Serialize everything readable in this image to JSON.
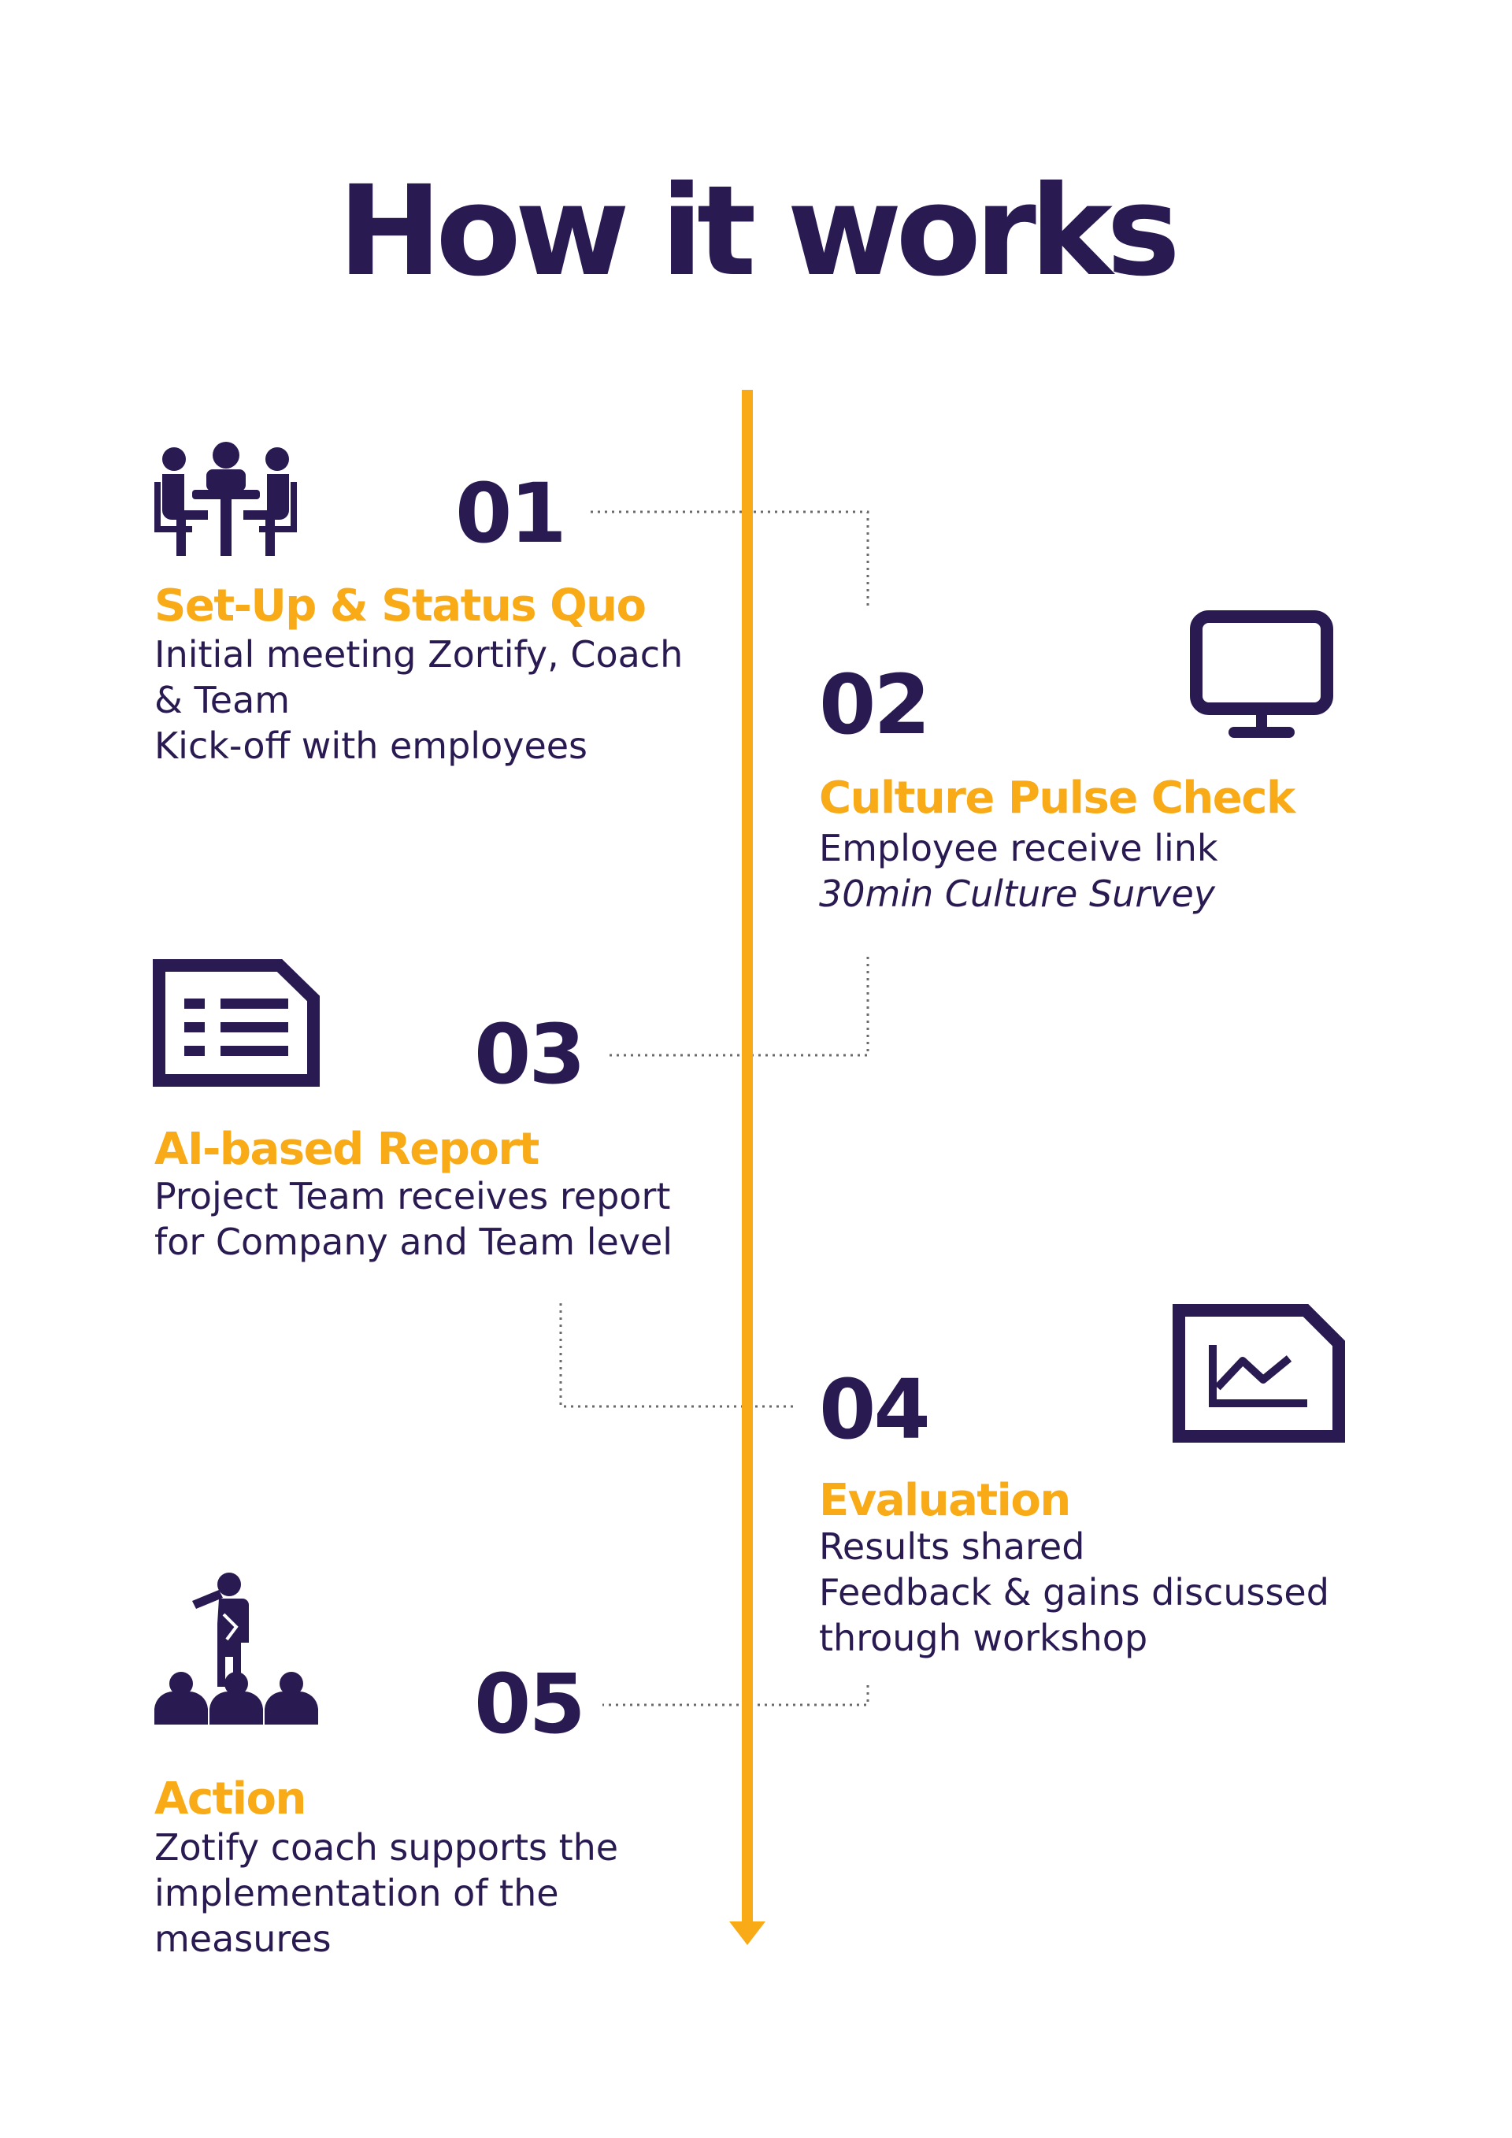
{
  "title": "How it works",
  "colors": {
    "primary": "#2a1a52",
    "accent": "#f8ab17",
    "connector": "#6b6b6b"
  },
  "steps": [
    {
      "number": "01",
      "heading": "Set-Up & Status Quo",
      "icon": "meeting-icon",
      "lines": [
        "Initial meeting Zortify, Coach",
        "& Team",
        "Kick-off with employees"
      ]
    },
    {
      "number": "02",
      "heading": "Culture Pulse Check",
      "icon": "monitor-icon",
      "lines": [
        "Employee receive link"
      ],
      "italic_line": "30min Culture Survey"
    },
    {
      "number": "03",
      "heading": "AI-based Report",
      "icon": "report-icon",
      "lines": [
        "Project Team receives report",
        "for Company and Team level"
      ]
    },
    {
      "number": "04",
      "heading": "Evaluation",
      "icon": "chart-icon",
      "lines": [
        "Results shared",
        "Feedback & gains discussed",
        "through workshop"
      ]
    },
    {
      "number": "05",
      "heading": "Action",
      "icon": "presentation-icon",
      "lines": [
        "Zotify coach supports the",
        "implementation of the",
        "measures"
      ]
    }
  ]
}
